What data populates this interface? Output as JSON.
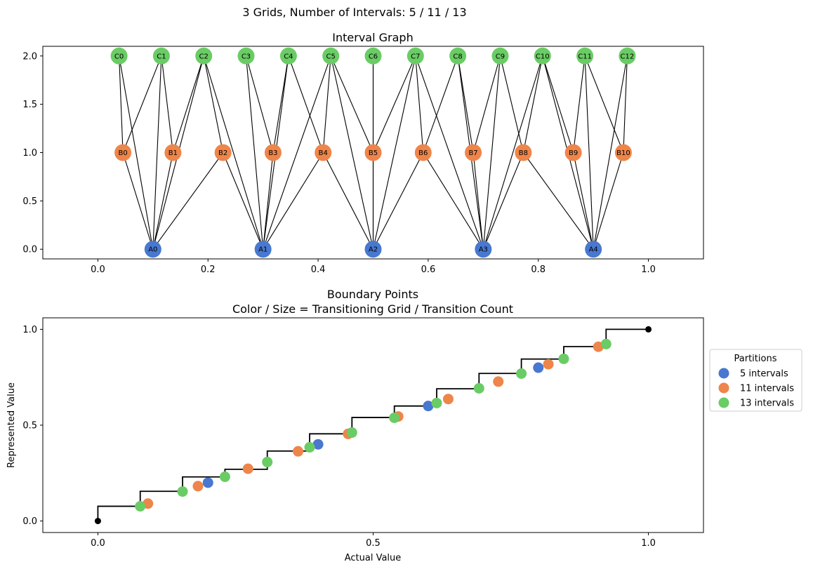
{
  "suptitle": "3 Grids, Number of Intervals: 5 / 11 / 13",
  "colors": {
    "A": "#4878cf",
    "B": "#ee854a",
    "C": "#6acc64",
    "step": "#000000"
  },
  "chart_data": [
    {
      "type": "network",
      "title": "Interval Graph",
      "xlim": [
        -0.1,
        1.1
      ],
      "ylim": [
        -0.1,
        2.1
      ],
      "xticks": [
        "0.0",
        "0.2",
        "0.4",
        "0.6",
        "0.8",
        "1.0"
      ],
      "xtick_values": [
        0,
        0.2,
        0.4,
        0.6,
        0.8,
        1.0
      ],
      "yticks": [
        "0.0",
        "0.5",
        "1.0",
        "1.5",
        "2.0"
      ],
      "ytick_values": [
        0,
        0.5,
        1.0,
        1.5,
        2.0
      ],
      "nodes": [
        {
          "id": "A0",
          "x": 0.1,
          "y": 0,
          "group": "A"
        },
        {
          "id": "A1",
          "x": 0.3,
          "y": 0,
          "group": "A"
        },
        {
          "id": "A2",
          "x": 0.5,
          "y": 0,
          "group": "A"
        },
        {
          "id": "A3",
          "x": 0.7,
          "y": 0,
          "group": "A"
        },
        {
          "id": "A4",
          "x": 0.9,
          "y": 0,
          "group": "A"
        },
        {
          "id": "B0",
          "x": 0.0455,
          "y": 1,
          "group": "B"
        },
        {
          "id": "B1",
          "x": 0.1364,
          "y": 1,
          "group": "B"
        },
        {
          "id": "B2",
          "x": 0.2273,
          "y": 1,
          "group": "B"
        },
        {
          "id": "B3",
          "x": 0.3182,
          "y": 1,
          "group": "B"
        },
        {
          "id": "B4",
          "x": 0.4091,
          "y": 1,
          "group": "B"
        },
        {
          "id": "B5",
          "x": 0.5,
          "y": 1,
          "group": "B"
        },
        {
          "id": "B6",
          "x": 0.5909,
          "y": 1,
          "group": "B"
        },
        {
          "id": "B7",
          "x": 0.6818,
          "y": 1,
          "group": "B"
        },
        {
          "id": "B8",
          "x": 0.7727,
          "y": 1,
          "group": "B"
        },
        {
          "id": "B9",
          "x": 0.8636,
          "y": 1,
          "group": "B"
        },
        {
          "id": "B10",
          "x": 0.9545,
          "y": 1,
          "group": "B"
        },
        {
          "id": "C0",
          "x": 0.0385,
          "y": 2,
          "group": "C"
        },
        {
          "id": "C1",
          "x": 0.1154,
          "y": 2,
          "group": "C"
        },
        {
          "id": "C2",
          "x": 0.1923,
          "y": 2,
          "group": "C"
        },
        {
          "id": "C3",
          "x": 0.2692,
          "y": 2,
          "group": "C"
        },
        {
          "id": "C4",
          "x": 0.3462,
          "y": 2,
          "group": "C"
        },
        {
          "id": "C5",
          "x": 0.4231,
          "y": 2,
          "group": "C"
        },
        {
          "id": "C6",
          "x": 0.5,
          "y": 2,
          "group": "C"
        },
        {
          "id": "C7",
          "x": 0.5769,
          "y": 2,
          "group": "C"
        },
        {
          "id": "C8",
          "x": 0.6538,
          "y": 2,
          "group": "C"
        },
        {
          "id": "C9",
          "x": 0.7308,
          "y": 2,
          "group": "C"
        },
        {
          "id": "C10",
          "x": 0.8077,
          "y": 2,
          "group": "C"
        },
        {
          "id": "C11",
          "x": 0.8846,
          "y": 2,
          "group": "C"
        },
        {
          "id": "C12",
          "x": 0.9615,
          "y": 2,
          "group": "C"
        }
      ],
      "edges": [
        [
          "A0",
          "B0"
        ],
        [
          "A0",
          "B1"
        ],
        [
          "A0",
          "B2"
        ],
        [
          "A0",
          "C0"
        ],
        [
          "A0",
          "C1"
        ],
        [
          "A0",
          "C2"
        ],
        [
          "A1",
          "B2"
        ],
        [
          "A1",
          "B3"
        ],
        [
          "A1",
          "B4"
        ],
        [
          "A1",
          "C2"
        ],
        [
          "A1",
          "C3"
        ],
        [
          "A1",
          "C4"
        ],
        [
          "A1",
          "C5"
        ],
        [
          "A2",
          "B4"
        ],
        [
          "A2",
          "B5"
        ],
        [
          "A2",
          "B6"
        ],
        [
          "A2",
          "C5"
        ],
        [
          "A2",
          "C6"
        ],
        [
          "A2",
          "C7"
        ],
        [
          "A3",
          "B6"
        ],
        [
          "A3",
          "B7"
        ],
        [
          "A3",
          "B8"
        ],
        [
          "A3",
          "C7"
        ],
        [
          "A3",
          "C8"
        ],
        [
          "A3",
          "C9"
        ],
        [
          "A3",
          "C10"
        ],
        [
          "A4",
          "B8"
        ],
        [
          "A4",
          "B9"
        ],
        [
          "A4",
          "B10"
        ],
        [
          "A4",
          "C10"
        ],
        [
          "A4",
          "C11"
        ],
        [
          "A4",
          "C12"
        ],
        [
          "B0",
          "C0"
        ],
        [
          "B0",
          "C1"
        ],
        [
          "B1",
          "C1"
        ],
        [
          "B1",
          "C2"
        ],
        [
          "B2",
          "C2"
        ],
        [
          "B3",
          "C3"
        ],
        [
          "B3",
          "C4"
        ],
        [
          "B4",
          "C4"
        ],
        [
          "B4",
          "C5"
        ],
        [
          "B5",
          "C5"
        ],
        [
          "B5",
          "C6"
        ],
        [
          "B5",
          "C7"
        ],
        [
          "B6",
          "C7"
        ],
        [
          "B6",
          "C8"
        ],
        [
          "B7",
          "C8"
        ],
        [
          "B7",
          "C9"
        ],
        [
          "B8",
          "C9"
        ],
        [
          "B8",
          "C10"
        ],
        [
          "B9",
          "C10"
        ],
        [
          "B9",
          "C11"
        ],
        [
          "B10",
          "C11"
        ],
        [
          "B10",
          "C12"
        ]
      ]
    },
    {
      "type": "scatter",
      "title": "Boundary Points",
      "subtitle": "Color / Size = Transitioning Grid / Transition Count",
      "xlabel": "Actual Value",
      "ylabel": "Represented Value",
      "xlim": [
        -0.1,
        1.1
      ],
      "ylim": [
        -0.06,
        1.06
      ],
      "xticks": [
        "0.0",
        "0.5",
        "1.0"
      ],
      "xtick_values": [
        0,
        0.5,
        1.0
      ],
      "yticks": [
        "0.0",
        "0.5",
        "1.0"
      ],
      "ytick_values": [
        0,
        0.5,
        1.0
      ],
      "step_line": {
        "x": [
          0,
          0,
          0.0769,
          0.0769,
          0.1538,
          0.1538,
          0.2308,
          0.2308,
          0.3077,
          0.3077,
          0.3846,
          0.3846,
          0.4615,
          0.4615,
          0.5385,
          0.5385,
          0.6154,
          0.6154,
          0.6923,
          0.6923,
          0.7692,
          0.7692,
          0.8462,
          0.8462,
          0.9231,
          0.9231,
          1.0
        ],
        "y": [
          0,
          0.077,
          0.077,
          0.155,
          0.155,
          0.23,
          0.23,
          0.27,
          0.27,
          0.365,
          0.365,
          0.455,
          0.455,
          0.54,
          0.54,
          0.6,
          0.6,
          0.69,
          0.69,
          0.77,
          0.77,
          0.845,
          0.845,
          0.91,
          0.91,
          1.0,
          1.0
        ]
      },
      "endpoints": [
        [
          0,
          0
        ],
        [
          1.0,
          1.0
        ]
      ],
      "series": [
        {
          "name": "5 intervals",
          "group": "A",
          "x": [
            0.2,
            0.4,
            0.6,
            0.8
          ],
          "y": [
            0.2,
            0.4,
            0.6,
            0.8
          ]
        },
        {
          "name": "11 intervals",
          "group": "B",
          "x": [
            0.0909,
            0.1818,
            0.2727,
            0.3636,
            0.4545,
            0.5455,
            0.6364,
            0.7273,
            0.8182,
            0.9091
          ],
          "y": [
            0.0909,
            0.1818,
            0.2727,
            0.3636,
            0.4545,
            0.5455,
            0.6364,
            0.7273,
            0.8182,
            0.9091
          ]
        },
        {
          "name": "13 intervals",
          "group": "C",
          "x": [
            0.0769,
            0.1538,
            0.2308,
            0.3077,
            0.3846,
            0.4615,
            0.5385,
            0.6154,
            0.6923,
            0.7692,
            0.8462,
            0.9231
          ],
          "y": [
            0.0769,
            0.1538,
            0.2308,
            0.3077,
            0.3846,
            0.4615,
            0.5385,
            0.6154,
            0.6923,
            0.7692,
            0.8462,
            0.9231
          ]
        }
      ],
      "legend": {
        "title": "Partitions",
        "placement": "outside-right"
      }
    }
  ]
}
